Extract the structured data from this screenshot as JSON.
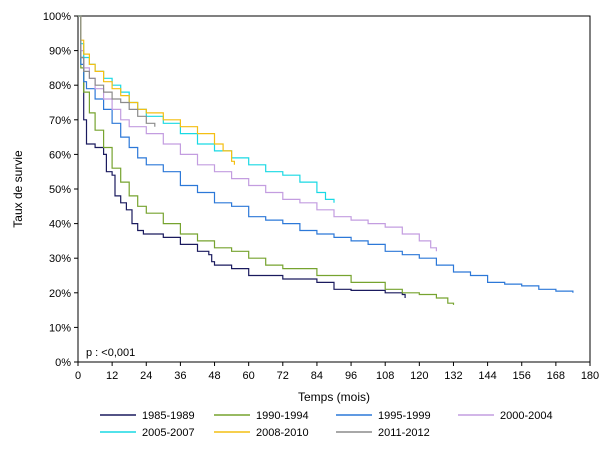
{
  "chart_data": {
    "type": "line",
    "title": "",
    "xlabel": "Temps (mois)",
    "ylabel": "Taux de survie",
    "xlim": [
      0,
      180
    ],
    "ylim": [
      0,
      100
    ],
    "x_ticks": [
      0,
      12,
      24,
      36,
      48,
      60,
      72,
      84,
      96,
      108,
      120,
      132,
      144,
      156,
      168,
      180
    ],
    "y_ticks": [
      0,
      10,
      20,
      30,
      40,
      50,
      60,
      70,
      80,
      90,
      100
    ],
    "y_tick_suffix": "%",
    "grid": false,
    "legend_position": "bottom",
    "annotation": "p : <0,001",
    "series": [
      {
        "name": "1985-1989",
        "color": "#1a1a5e",
        "points": [
          [
            0,
            100
          ],
          [
            1,
            88
          ],
          [
            2,
            70
          ],
          [
            3,
            63
          ],
          [
            6,
            62
          ],
          [
            9,
            60
          ],
          [
            10,
            55
          ],
          [
            12,
            54
          ],
          [
            13,
            48
          ],
          [
            15,
            46
          ],
          [
            17,
            44
          ],
          [
            19,
            40
          ],
          [
            21,
            38
          ],
          [
            23,
            37
          ],
          [
            30,
            36
          ],
          [
            36,
            34
          ],
          [
            42,
            32
          ],
          [
            46,
            31
          ],
          [
            47,
            29
          ],
          [
            48,
            28
          ],
          [
            54,
            27
          ],
          [
            60,
            25
          ],
          [
            72,
            24
          ],
          [
            84,
            23
          ],
          [
            90,
            21
          ],
          [
            96,
            20.7
          ],
          [
            108,
            20
          ],
          [
            114,
            19.5
          ],
          [
            115,
            18.5
          ]
        ]
      },
      {
        "name": "1990-1994",
        "color": "#76a32f",
        "points": [
          [
            0,
            100
          ],
          [
            1,
            85
          ],
          [
            2,
            78
          ],
          [
            4,
            72
          ],
          [
            6,
            67
          ],
          [
            9,
            62
          ],
          [
            12,
            56
          ],
          [
            15,
            52
          ],
          [
            18,
            48
          ],
          [
            21,
            45
          ],
          [
            24,
            43
          ],
          [
            30,
            40
          ],
          [
            36,
            37
          ],
          [
            42,
            35
          ],
          [
            48,
            33
          ],
          [
            54,
            32
          ],
          [
            60,
            30
          ],
          [
            66,
            28
          ],
          [
            72,
            27
          ],
          [
            84,
            25
          ],
          [
            96,
            23
          ],
          [
            108,
            21
          ],
          [
            114,
            20
          ],
          [
            120,
            19.5
          ],
          [
            126,
            18.5
          ],
          [
            130,
            17
          ],
          [
            132,
            16.5
          ]
        ]
      },
      {
        "name": "1995-1999",
        "color": "#2c78d8",
        "points": [
          [
            0,
            100
          ],
          [
            1,
            86
          ],
          [
            2,
            81
          ],
          [
            3,
            79
          ],
          [
            6,
            76
          ],
          [
            9,
            73
          ],
          [
            12,
            69
          ],
          [
            15,
            65
          ],
          [
            18,
            62
          ],
          [
            21,
            59
          ],
          [
            24,
            57
          ],
          [
            30,
            55
          ],
          [
            36,
            51
          ],
          [
            42,
            49
          ],
          [
            48,
            46
          ],
          [
            54,
            45
          ],
          [
            60,
            42
          ],
          [
            66,
            41
          ],
          [
            72,
            40
          ],
          [
            78,
            38
          ],
          [
            84,
            37
          ],
          [
            90,
            36
          ],
          [
            96,
            35
          ],
          [
            102,
            34
          ],
          [
            108,
            32
          ],
          [
            114,
            31
          ],
          [
            120,
            30
          ],
          [
            126,
            28
          ],
          [
            132,
            26
          ],
          [
            138,
            25
          ],
          [
            144,
            23
          ],
          [
            150,
            22.5
          ],
          [
            156,
            22
          ],
          [
            162,
            21
          ],
          [
            168,
            20.5
          ],
          [
            174,
            20
          ]
        ]
      },
      {
        "name": "2000-2004",
        "color": "#c39de0",
        "points": [
          [
            0,
            100
          ],
          [
            1,
            90
          ],
          [
            2,
            85
          ],
          [
            4,
            82
          ],
          [
            6,
            79
          ],
          [
            9,
            76
          ],
          [
            12,
            73
          ],
          [
            15,
            70
          ],
          [
            18,
            68
          ],
          [
            24,
            66
          ],
          [
            30,
            63
          ],
          [
            36,
            60
          ],
          [
            42,
            57
          ],
          [
            48,
            55
          ],
          [
            54,
            53
          ],
          [
            60,
            51
          ],
          [
            66,
            49
          ],
          [
            72,
            47
          ],
          [
            78,
            46
          ],
          [
            84,
            44
          ],
          [
            90,
            42
          ],
          [
            96,
            41
          ],
          [
            102,
            40
          ],
          [
            108,
            39
          ],
          [
            114,
            37
          ],
          [
            120,
            35
          ],
          [
            124,
            33
          ],
          [
            126,
            32
          ]
        ]
      },
      {
        "name": "2005-2007",
        "color": "#19d9e4",
        "points": [
          [
            0,
            100
          ],
          [
            1,
            92
          ],
          [
            2,
            88
          ],
          [
            4,
            86
          ],
          [
            6,
            84
          ],
          [
            9,
            82
          ],
          [
            12,
            80
          ],
          [
            15,
            78
          ],
          [
            18,
            75
          ],
          [
            21,
            73
          ],
          [
            24,
            71
          ],
          [
            30,
            69
          ],
          [
            36,
            66
          ],
          [
            42,
            63
          ],
          [
            48,
            61
          ],
          [
            54,
            59
          ],
          [
            60,
            57
          ],
          [
            66,
            55
          ],
          [
            72,
            54
          ],
          [
            78,
            52
          ],
          [
            84,
            49
          ],
          [
            87,
            47
          ],
          [
            90,
            46
          ]
        ]
      },
      {
        "name": "2008-2010",
        "color": "#f4bf13",
        "points": [
          [
            0,
            100
          ],
          [
            1,
            93
          ],
          [
            2,
            89
          ],
          [
            4,
            86
          ],
          [
            6,
            84
          ],
          [
            9,
            81
          ],
          [
            12,
            79
          ],
          [
            15,
            77
          ],
          [
            18,
            75
          ],
          [
            21,
            73
          ],
          [
            24,
            72
          ],
          [
            30,
            70
          ],
          [
            36,
            68
          ],
          [
            42,
            66
          ],
          [
            48,
            63
          ],
          [
            51,
            61
          ],
          [
            54,
            58
          ],
          [
            55,
            57
          ]
        ]
      },
      {
        "name": "2011-2012",
        "color": "#8c8c8c",
        "points": [
          [
            0,
            100
          ],
          [
            1,
            88
          ],
          [
            2,
            84
          ],
          [
            4,
            82
          ],
          [
            6,
            80
          ],
          [
            9,
            78
          ],
          [
            12,
            76
          ],
          [
            15,
            75
          ],
          [
            18,
            73
          ],
          [
            21,
            71
          ],
          [
            24,
            69
          ],
          [
            27,
            68
          ]
        ]
      }
    ]
  }
}
